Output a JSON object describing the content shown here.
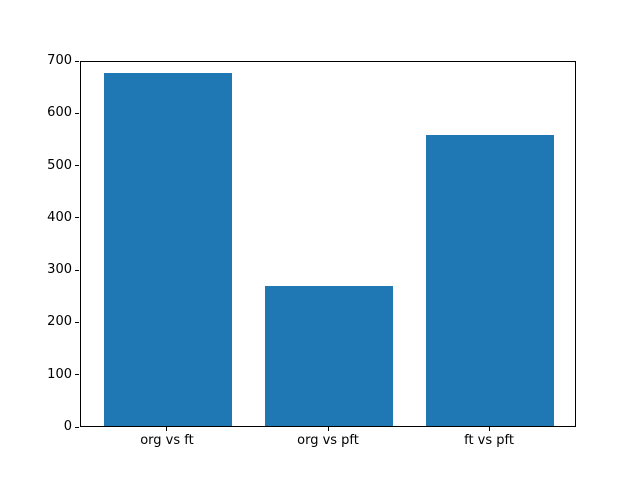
{
  "chart_data": {
    "type": "bar",
    "categories": [
      "org vs ft",
      "org vs pft",
      "ft vs pft"
    ],
    "values": [
      675,
      267,
      557
    ],
    "title": "",
    "xlabel": "",
    "ylabel": "",
    "ylim": [
      0,
      700
    ],
    "yticks": [
      0,
      100,
      200,
      300,
      400,
      500,
      600,
      700
    ],
    "grid": false,
    "legend": null,
    "bar_color": "#1f77b4"
  },
  "colors": {
    "bar": "#1f77b4",
    "background": "#ffffff",
    "axis": "#000000",
    "text": "#000000"
  }
}
